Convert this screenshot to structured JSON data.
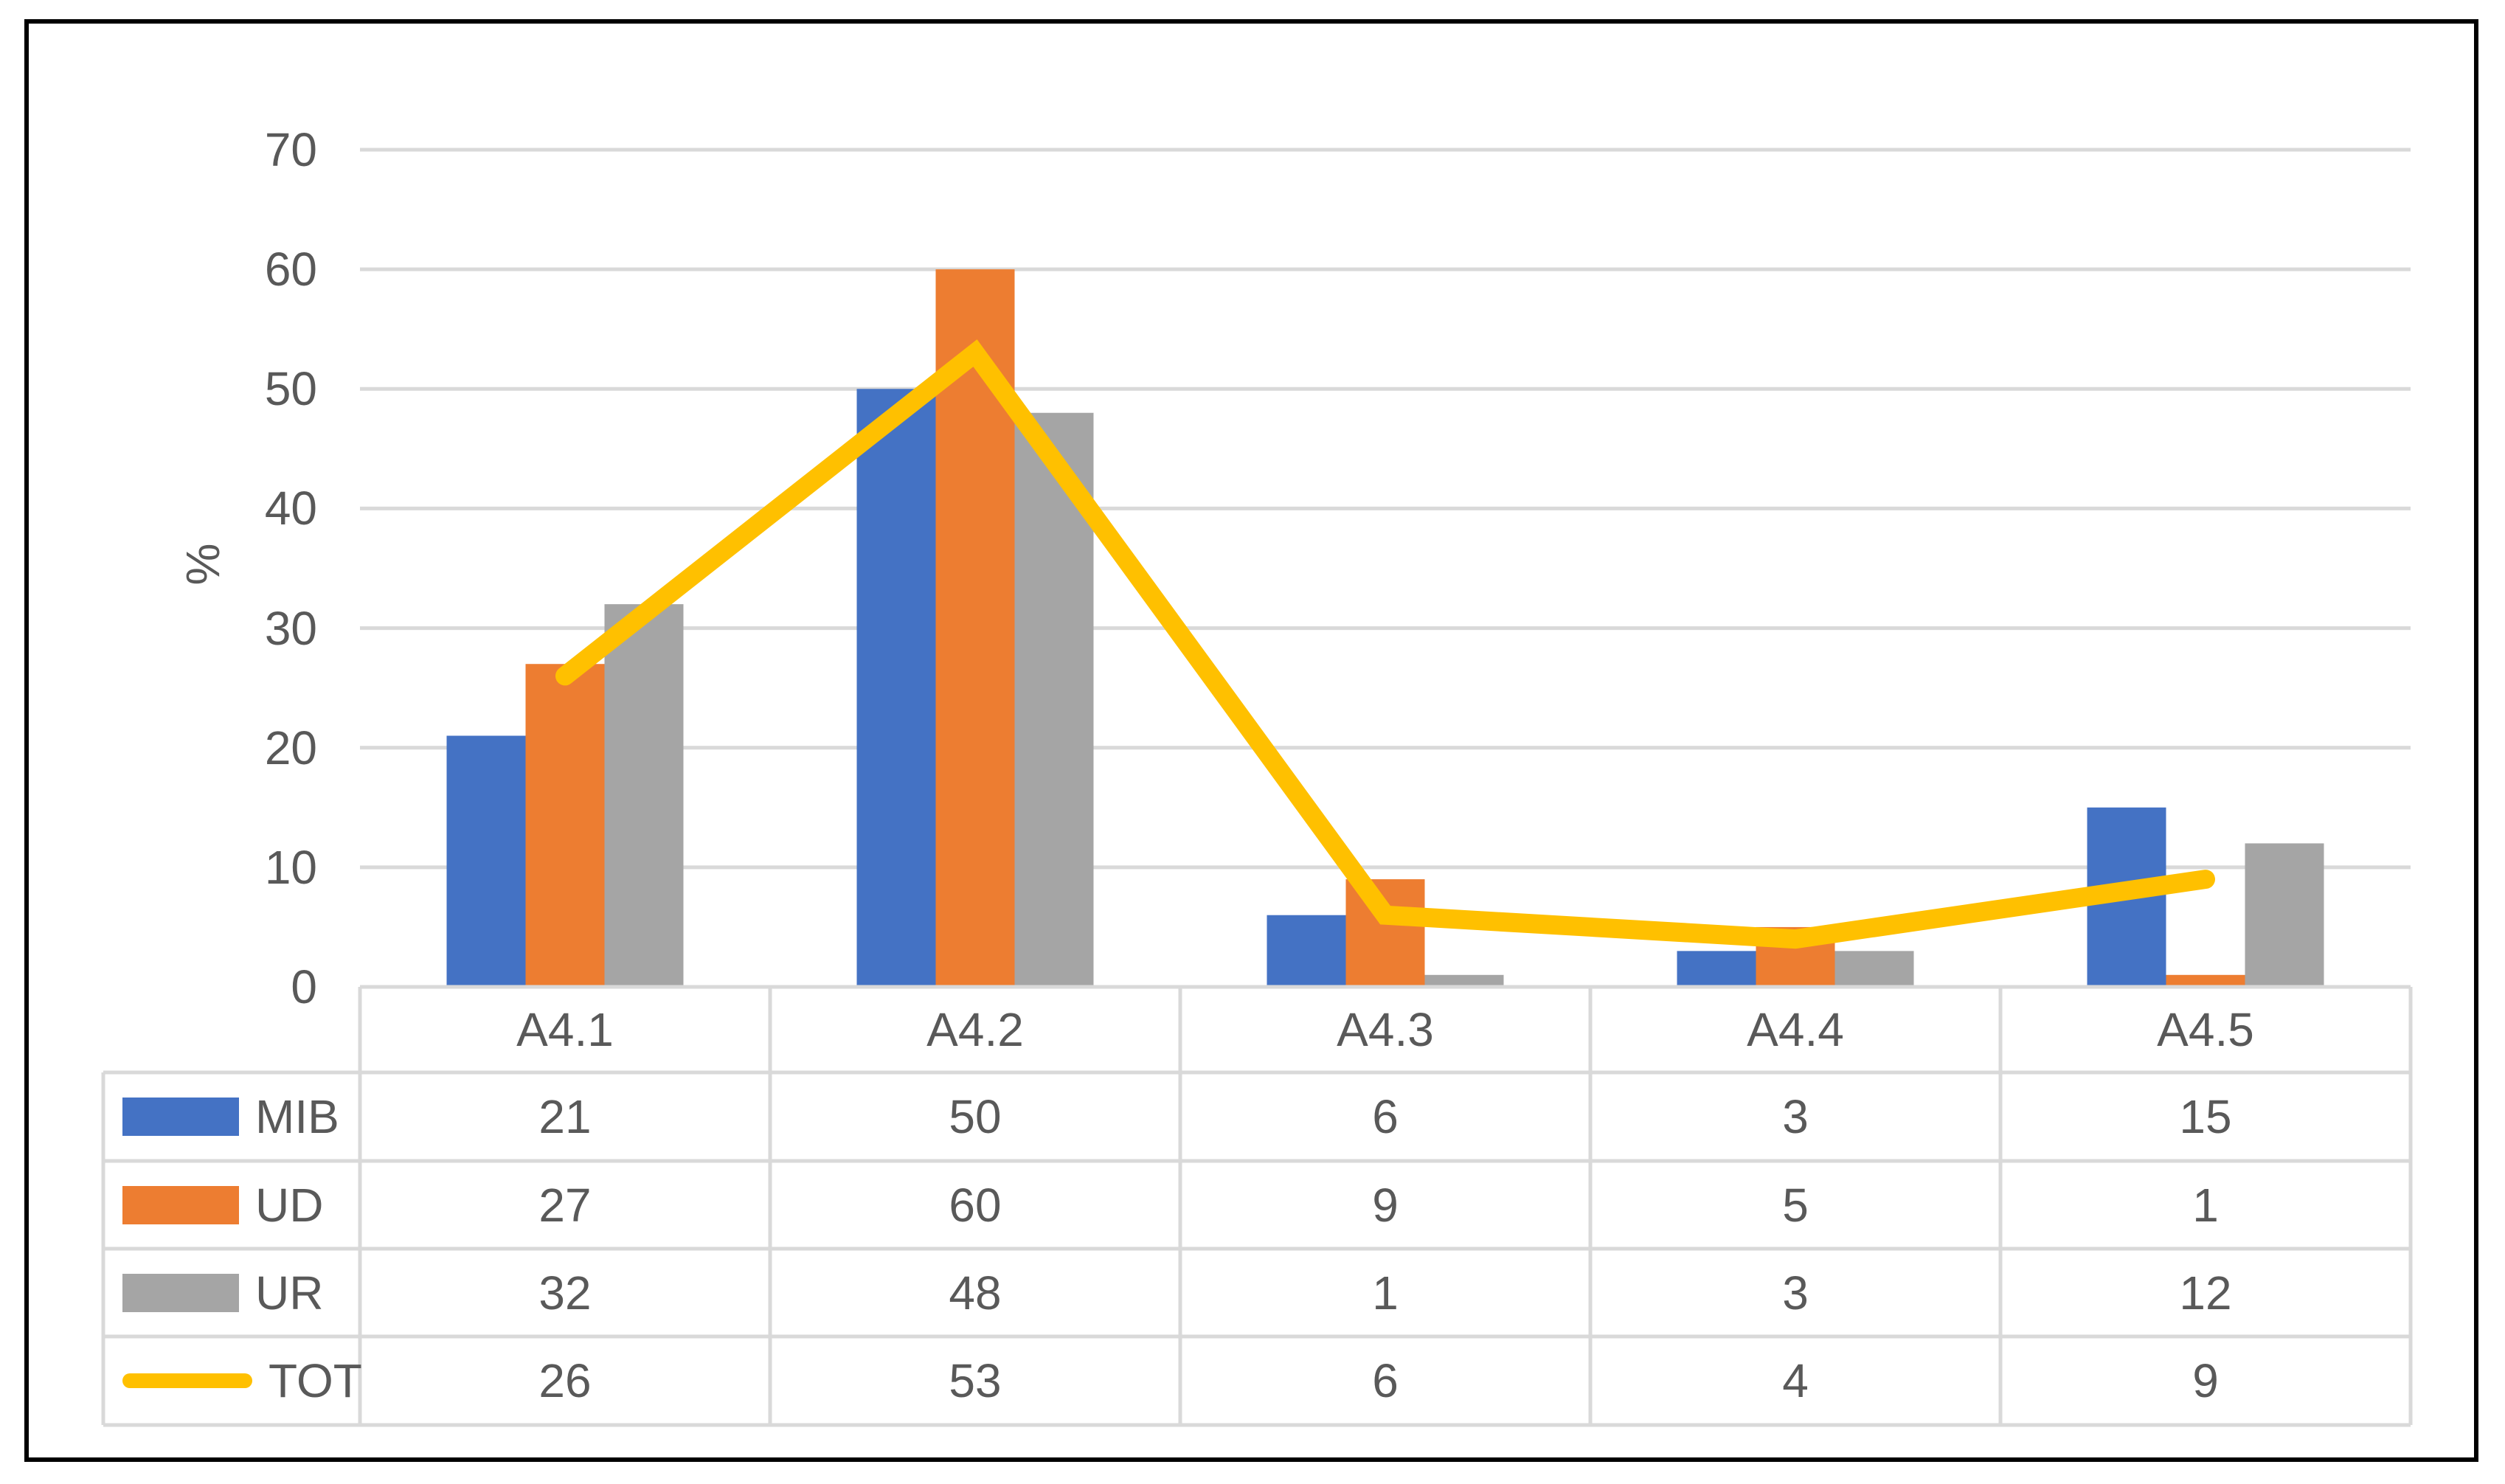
{
  "chart_data": {
    "type": "bar",
    "subtype": "grouped-bars-with-line-overlay-and-data-table",
    "categories": [
      "A4.1",
      "A4.2",
      "A4.3",
      "A4.4",
      "A4.5"
    ],
    "series": [
      {
        "name": "MIB",
        "type": "bar",
        "color": "#4472C4",
        "values": [
          21,
          50,
          6,
          3,
          15
        ]
      },
      {
        "name": "UD",
        "type": "bar",
        "color": "#ED7D31",
        "values": [
          27,
          60,
          9,
          5,
          1
        ]
      },
      {
        "name": "UR",
        "type": "bar",
        "color": "#A5A5A5",
        "values": [
          32,
          48,
          1,
          3,
          12
        ]
      },
      {
        "name": "TOT",
        "type": "line",
        "color": "#FFC000",
        "values": [
          26,
          53,
          6,
          4,
          9
        ]
      }
    ],
    "title": "",
    "xlabel": "",
    "ylabel": "%",
    "ylim": [
      0,
      70
    ],
    "yticks": [
      0,
      10,
      20,
      30,
      40,
      50,
      60,
      70
    ],
    "grid": true,
    "gridline_color": "#D9D9D9",
    "axis_text_color": "#595959",
    "table_border_color": "#D9D9D9",
    "frame_border_color": "#000000",
    "legend_position": "data-table-left-column"
  }
}
